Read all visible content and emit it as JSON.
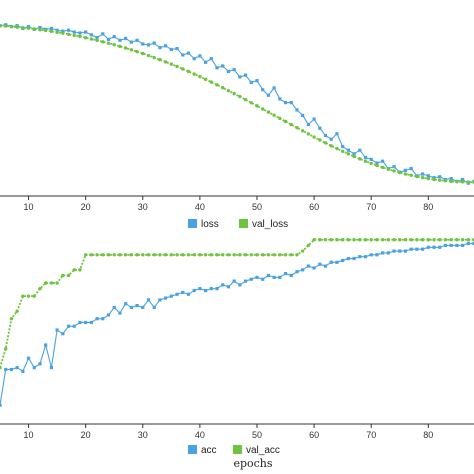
{
  "chart_data": [
    {
      "type": "line",
      "title": "",
      "xlabel": "",
      "ylabel": "",
      "xlim": [
        5,
        88
      ],
      "ylim": [
        0.05,
        1.0
      ],
      "xticks": [
        10,
        20,
        30,
        40,
        50,
        60,
        70,
        80
      ],
      "legend_position": "bottom-center",
      "grid": false,
      "series": [
        {
          "name": "loss",
          "color": "#4aa3e0",
          "marker": "square",
          "x": [
            5,
            6,
            7,
            8,
            9,
            10,
            11,
            12,
            13,
            14,
            15,
            16,
            17,
            18,
            19,
            20,
            21,
            22,
            23,
            24,
            25,
            26,
            27,
            28,
            29,
            30,
            31,
            32,
            33,
            34,
            35,
            36,
            37,
            38,
            39,
            40,
            41,
            42,
            43,
            44,
            45,
            46,
            47,
            48,
            49,
            50,
            51,
            52,
            53,
            54,
            55,
            56,
            57,
            58,
            59,
            60,
            61,
            62,
            63,
            64,
            65,
            66,
            67,
            68,
            69,
            70,
            71,
            72,
            73,
            74,
            75,
            76,
            77,
            78,
            79,
            80,
            81,
            82,
            83,
            84,
            85,
            86,
            87,
            88
          ],
          "y": [
            0.98,
            0.985,
            0.975,
            0.98,
            0.965,
            0.975,
            0.96,
            0.97,
            0.96,
            0.965,
            0.955,
            0.95,
            0.955,
            0.945,
            0.94,
            0.945,
            0.93,
            0.915,
            0.935,
            0.905,
            0.92,
            0.9,
            0.91,
            0.89,
            0.9,
            0.88,
            0.875,
            0.885,
            0.86,
            0.87,
            0.85,
            0.855,
            0.82,
            0.83,
            0.8,
            0.815,
            0.78,
            0.8,
            0.75,
            0.76,
            0.73,
            0.74,
            0.7,
            0.71,
            0.67,
            0.68,
            0.63,
            0.6,
            0.64,
            0.58,
            0.56,
            0.56,
            0.52,
            0.49,
            0.44,
            0.47,
            0.42,
            0.38,
            0.36,
            0.39,
            0.32,
            0.3,
            0.28,
            0.3,
            0.26,
            0.25,
            0.23,
            0.24,
            0.2,
            0.21,
            0.18,
            0.19,
            0.2,
            0.16,
            0.17,
            0.16,
            0.15,
            0.155,
            0.14,
            0.145,
            0.13,
            0.14,
            0.12,
            0.13
          ]
        },
        {
          "name": "val_loss",
          "color": "#6ec43f",
          "marker": "circle",
          "x": [
            5,
            6,
            7,
            8,
            9,
            10,
            11,
            12,
            13,
            14,
            15,
            16,
            17,
            18,
            19,
            20,
            21,
            22,
            23,
            24,
            25,
            26,
            27,
            28,
            29,
            30,
            31,
            32,
            33,
            34,
            35,
            36,
            37,
            38,
            39,
            40,
            41,
            42,
            43,
            44,
            45,
            46,
            47,
            48,
            49,
            50,
            51,
            52,
            53,
            54,
            55,
            56,
            57,
            58,
            59,
            60,
            61,
            62,
            63,
            64,
            65,
            66,
            67,
            68,
            69,
            70,
            71,
            72,
            73,
            74,
            75,
            76,
            77,
            78,
            79,
            80,
            81,
            82,
            83,
            84,
            85,
            86,
            87,
            88
          ],
          "y": [
            0.98,
            0.978,
            0.975,
            0.972,
            0.969,
            0.966,
            0.962,
            0.958,
            0.954,
            0.949,
            0.944,
            0.939,
            0.933,
            0.927,
            0.921,
            0.914,
            0.907,
            0.9,
            0.892,
            0.884,
            0.876,
            0.867,
            0.858,
            0.848,
            0.838,
            0.828,
            0.817,
            0.806,
            0.794,
            0.782,
            0.77,
            0.757,
            0.744,
            0.73,
            0.716,
            0.702,
            0.687,
            0.672,
            0.657,
            0.641,
            0.625,
            0.609,
            0.593,
            0.576,
            0.559,
            0.542,
            0.525,
            0.508,
            0.491,
            0.474,
            0.457,
            0.44,
            0.423,
            0.406,
            0.389,
            0.372,
            0.356,
            0.34,
            0.324,
            0.309,
            0.294,
            0.28,
            0.266,
            0.253,
            0.24,
            0.228,
            0.217,
            0.206,
            0.196,
            0.187,
            0.178,
            0.17,
            0.163,
            0.156,
            0.15,
            0.145,
            0.14,
            0.136,
            0.133,
            0.13,
            0.128,
            0.127,
            0.126,
            0.125
          ]
        }
      ]
    },
    {
      "type": "line",
      "title": "",
      "xlabel": "epochs",
      "ylabel": "",
      "xlim": [
        5,
        88
      ],
      "ylim": [
        0.0,
        1.0
      ],
      "xticks": [
        10,
        20,
        30,
        40,
        50,
        60,
        70,
        80
      ],
      "legend_position": "bottom-center",
      "grid": false,
      "series": [
        {
          "name": "acc",
          "color": "#4aa3e0",
          "marker": "square",
          "x": [
            5,
            6,
            7,
            8,
            9,
            10,
            11,
            12,
            13,
            14,
            15,
            16,
            17,
            18,
            19,
            20,
            21,
            22,
            23,
            24,
            25,
            26,
            27,
            28,
            29,
            30,
            31,
            32,
            33,
            34,
            35,
            36,
            37,
            38,
            39,
            40,
            41,
            42,
            43,
            44,
            45,
            46,
            47,
            48,
            49,
            50,
            51,
            52,
            53,
            54,
            55,
            56,
            57,
            58,
            59,
            60,
            61,
            62,
            63,
            64,
            65,
            66,
            67,
            68,
            69,
            70,
            71,
            72,
            73,
            74,
            75,
            76,
            77,
            78,
            79,
            80,
            81,
            82,
            83,
            84,
            85,
            86,
            87,
            88
          ],
          "y": [
            0.1,
            0.29,
            0.29,
            0.3,
            0.28,
            0.35,
            0.3,
            0.32,
            0.42,
            0.3,
            0.5,
            0.48,
            0.52,
            0.52,
            0.54,
            0.54,
            0.54,
            0.56,
            0.56,
            0.58,
            0.62,
            0.59,
            0.64,
            0.62,
            0.63,
            0.62,
            0.66,
            0.62,
            0.66,
            0.67,
            0.68,
            0.69,
            0.7,
            0.69,
            0.71,
            0.72,
            0.71,
            0.72,
            0.72,
            0.74,
            0.73,
            0.76,
            0.74,
            0.76,
            0.77,
            0.78,
            0.77,
            0.79,
            0.78,
            0.78,
            0.8,
            0.79,
            0.81,
            0.82,
            0.84,
            0.83,
            0.85,
            0.84,
            0.86,
            0.86,
            0.87,
            0.88,
            0.88,
            0.89,
            0.89,
            0.9,
            0.9,
            0.91,
            0.91,
            0.92,
            0.92,
            0.92,
            0.93,
            0.93,
            0.93,
            0.94,
            0.94,
            0.94,
            0.95,
            0.95,
            0.95,
            0.95,
            0.96,
            0.96
          ]
        },
        {
          "name": "val_acc",
          "color": "#6ec43f",
          "marker": "circle",
          "x": [
            5,
            6,
            7,
            8,
            9,
            10,
            11,
            12,
            13,
            14,
            15,
            16,
            17,
            18,
            19,
            20,
            21,
            22,
            23,
            24,
            25,
            26,
            27,
            28,
            29,
            30,
            31,
            32,
            33,
            34,
            35,
            36,
            37,
            38,
            39,
            40,
            41,
            42,
            43,
            44,
            45,
            46,
            47,
            48,
            49,
            50,
            51,
            52,
            53,
            54,
            55,
            56,
            57,
            58,
            59,
            60,
            61,
            62,
            63,
            64,
            65,
            66,
            67,
            68,
            69,
            70,
            71,
            72,
            73,
            74,
            75,
            76,
            77,
            78,
            79,
            80,
            81,
            82,
            83,
            84,
            85,
            86,
            87,
            88
          ],
          "y": [
            0.3,
            0.4,
            0.56,
            0.6,
            0.68,
            0.68,
            0.68,
            0.72,
            0.75,
            0.75,
            0.75,
            0.79,
            0.79,
            0.82,
            0.82,
            0.9,
            0.9,
            0.9,
            0.9,
            0.9,
            0.9,
            0.9,
            0.9,
            0.9,
            0.9,
            0.9,
            0.9,
            0.9,
            0.9,
            0.9,
            0.9,
            0.9,
            0.9,
            0.9,
            0.9,
            0.9,
            0.9,
            0.9,
            0.9,
            0.9,
            0.9,
            0.9,
            0.9,
            0.9,
            0.9,
            0.9,
            0.9,
            0.9,
            0.9,
            0.9,
            0.9,
            0.9,
            0.9,
            0.92,
            0.95,
            0.98,
            0.98,
            0.98,
            0.98,
            0.98,
            0.98,
            0.98,
            0.98,
            0.98,
            0.98,
            0.98,
            0.98,
            0.98,
            0.98,
            0.98,
            0.98,
            0.98,
            0.98,
            0.98,
            0.98,
            0.98,
            0.98,
            0.98,
            0.98,
            0.98,
            0.98,
            0.98,
            0.98,
            0.98
          ]
        }
      ]
    }
  ]
}
